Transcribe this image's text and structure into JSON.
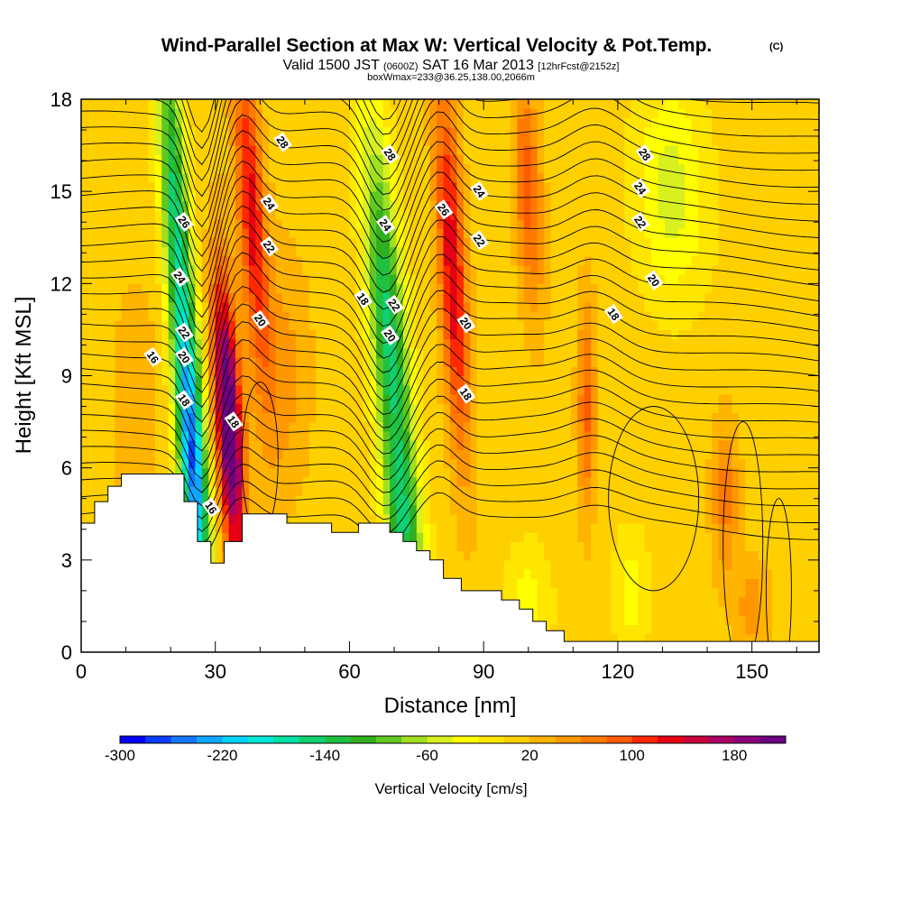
{
  "header": {
    "title": "Wind-Parallel Section at Max W: Vertical Velocity & Pot.Temp.",
    "title_suffix": "(C)",
    "valid_a": "Valid 1500 JST",
    "valid_z": "(0600Z)",
    "valid_b": "SAT 16 Mar 2013",
    "valid_c": "[12hrFcst@2152z]",
    "box_info": "boxWmax=233@36.25,138.00,2066m"
  },
  "chart_data": {
    "type": "heatmap",
    "xlabel": "Distance [nm]",
    "ylabel": "Height [Kft MSL]",
    "xlim": [
      0,
      165
    ],
    "ylim": [
      0,
      18
    ],
    "x_ticks": [
      "0",
      "30",
      "60",
      "90",
      "120",
      "150"
    ],
    "y_ticks": [
      "0",
      "3",
      "6",
      "9",
      "12",
      "15",
      "18"
    ],
    "colorbar": {
      "label": "Vertical Velocity [cm/s]",
      "min": -300,
      "max": 220,
      "step": 20,
      "tick_labels": [
        "-300",
        "-220",
        "-140",
        "-60",
        "20",
        "100",
        "180"
      ],
      "colors": [
        "#0000ff",
        "#0a3cff",
        "#1478ff",
        "#10a8ff",
        "#00d4ff",
        "#00e8d8",
        "#00e0a0",
        "#10d070",
        "#20c040",
        "#30b020",
        "#60c820",
        "#a0e020",
        "#d8f020",
        "#ffff00",
        "#ffe600",
        "#ffd000",
        "#ffb400",
        "#ff9800",
        "#ff7a00",
        "#ff5a00",
        "#ff2800",
        "#e60014",
        "#c8003c",
        "#aa0064",
        "#8c007c",
        "#6e0082"
      ]
    },
    "terrain_top_kft": [
      [
        0,
        4.2
      ],
      [
        3,
        4.2
      ],
      [
        3,
        4.9
      ],
      [
        6,
        4.9
      ],
      [
        6,
        5.4
      ],
      [
        9,
        5.4
      ],
      [
        9,
        5.8
      ],
      [
        23,
        5.8
      ],
      [
        23,
        4.9
      ],
      [
        26,
        4.9
      ],
      [
        26,
        3.6
      ],
      [
        29,
        3.6
      ],
      [
        29,
        2.9
      ],
      [
        32,
        2.9
      ],
      [
        32,
        3.6
      ],
      [
        36,
        3.6
      ],
      [
        36,
        4.5
      ],
      [
        46,
        4.5
      ],
      [
        46,
        4.2
      ],
      [
        56,
        4.2
      ],
      [
        56,
        3.9
      ],
      [
        62,
        3.9
      ],
      [
        62,
        4.2
      ],
      [
        69,
        4.2
      ],
      [
        69,
        3.9
      ],
      [
        72,
        3.9
      ],
      [
        72,
        3.6
      ],
      [
        75,
        3.6
      ],
      [
        75,
        3.3
      ],
      [
        78,
        3.3
      ],
      [
        78,
        3.0
      ],
      [
        81,
        3.0
      ],
      [
        81,
        2.4
      ],
      [
        85,
        2.4
      ],
      [
        85,
        2.0
      ],
      [
        94,
        2.0
      ],
      [
        94,
        1.7
      ],
      [
        98,
        1.7
      ],
      [
        98,
        1.4
      ],
      [
        101,
        1.4
      ],
      [
        101,
        1.0
      ],
      [
        104,
        1.0
      ],
      [
        104,
        0.7
      ],
      [
        108,
        0.7
      ],
      [
        108,
        0.35
      ],
      [
        165,
        0.35
      ]
    ],
    "w_features": [
      {
        "x": 25,
        "z": 6.0,
        "tilt": 0.42,
        "sx": 3.0,
        "sz": 5.0,
        "amp": -250
      },
      {
        "x": 21,
        "z": 14.5,
        "tilt": 0.42,
        "sx": 3.0,
        "sz": 6.0,
        "amp": -150
      },
      {
        "x": 33,
        "z": 7.5,
        "tilt": 0.38,
        "sx": 2.8,
        "sz": 4.5,
        "amp": 240
      },
      {
        "x": 38,
        "z": 14.5,
        "tilt": 0.42,
        "sx": 3.0,
        "sz": 5.5,
        "amp": 120
      },
      {
        "x": 69,
        "z": 10.0,
        "tilt": 0.55,
        "sx": 4.0,
        "sz": 7.0,
        "amp": -160
      },
      {
        "x": 72,
        "z": 4.0,
        "tilt": 0.55,
        "sx": 4.0,
        "sz": 2.5,
        "amp": -80
      },
      {
        "x": 83,
        "z": 12.5,
        "tilt": 0.35,
        "sx": 3.0,
        "sz": 6.0,
        "amp": 130
      },
      {
        "x": 100,
        "z": 15.0,
        "tilt": 0.3,
        "sx": 3.0,
        "sz": 4.0,
        "amp": 80
      },
      {
        "x": 132,
        "z": 15.0,
        "tilt": 0.2,
        "sx": 8.0,
        "sz": 3.5,
        "amp": -60
      },
      {
        "x": 113,
        "z": 8.0,
        "tilt": 0.0,
        "sx": 2.0,
        "sz": 3.5,
        "amp": 75
      },
      {
        "x": 144,
        "z": 5.0,
        "tilt": 0.0,
        "sx": 3.0,
        "sz": 2.5,
        "amp": 60
      },
      {
        "x": 100,
        "z": 1.5,
        "tilt": 0.0,
        "sx": 5.0,
        "sz": 2.0,
        "amp": -40
      },
      {
        "x": 123,
        "z": 2.0,
        "tilt": 0.0,
        "sx": 4.0,
        "sz": 2.0,
        "amp": -40
      },
      {
        "x": 150,
        "z": 1.5,
        "tilt": 0.0,
        "sx": 4.0,
        "sz": 1.5,
        "amp": 40
      },
      {
        "x": 45,
        "z": 9.0,
        "tilt": 0.0,
        "sx": 6.0,
        "sz": 4.0,
        "amp": 40
      },
      {
        "x": 12,
        "z": 8.0,
        "tilt": 0.0,
        "sx": 5.0,
        "sz": 4.0,
        "amp": 30
      }
    ],
    "theta_labels": [
      {
        "text": "28",
        "x": 45,
        "z": 16.6
      },
      {
        "text": "26",
        "x": 23,
        "z": 14.0
      },
      {
        "text": "24",
        "x": 42,
        "z": 14.6
      },
      {
        "text": "24",
        "x": 22,
        "z": 12.2
      },
      {
        "text": "22",
        "x": 42,
        "z": 13.2
      },
      {
        "text": "22",
        "x": 23,
        "z": 10.4
      },
      {
        "text": "20",
        "x": 40,
        "z": 10.8
      },
      {
        "text": "20",
        "x": 23,
        "z": 9.6
      },
      {
        "text": "18",
        "x": 23,
        "z": 8.2
      },
      {
        "text": "18",
        "x": 34,
        "z": 7.5
      },
      {
        "text": "16",
        "x": 16,
        "z": 9.6
      },
      {
        "text": "16",
        "x": 29,
        "z": 4.7
      },
      {
        "text": "28",
        "x": 69,
        "z": 16.2
      },
      {
        "text": "26",
        "x": 81,
        "z": 14.4
      },
      {
        "text": "24",
        "x": 89,
        "z": 15.0
      },
      {
        "text": "24",
        "x": 68,
        "z": 13.9
      },
      {
        "text": "22",
        "x": 89,
        "z": 13.4
      },
      {
        "text": "22",
        "x": 70,
        "z": 11.3
      },
      {
        "text": "20",
        "x": 86,
        "z": 10.7
      },
      {
        "text": "20",
        "x": 69,
        "z": 10.3
      },
      {
        "text": "18",
        "x": 63,
        "z": 11.5
      },
      {
        "text": "18",
        "x": 86,
        "z": 8.4
      },
      {
        "text": "28",
        "x": 126,
        "z": 16.2
      },
      {
        "text": "24",
        "x": 125,
        "z": 15.1
      },
      {
        "text": "22",
        "x": 125,
        "z": 14.0
      },
      {
        "text": "20",
        "x": 128,
        "z": 12.1
      },
      {
        "text": "18",
        "x": 119,
        "z": 11.0
      }
    ]
  }
}
